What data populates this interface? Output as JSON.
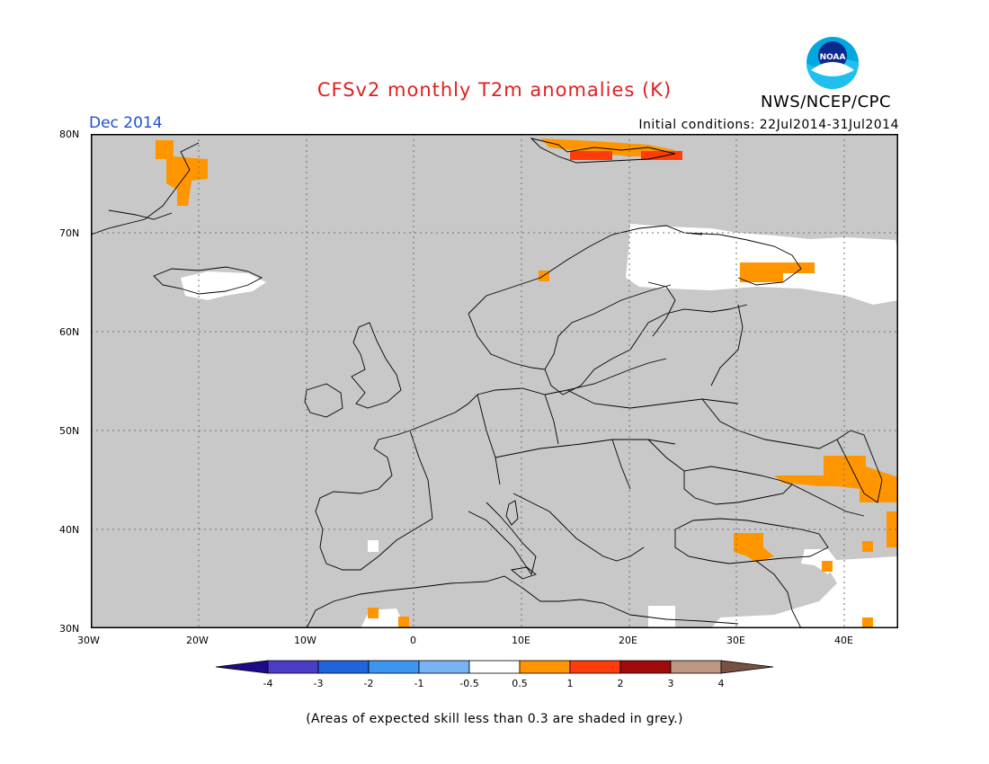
{
  "header": {
    "title": "CFSv2 monthly T2m anomalies (K)",
    "month": "Dec 2014",
    "initial_conditions": "Initial conditions: 22Jul2014-31Jul2014",
    "org": "NWS/NCEP/CPC",
    "logo_text": "NOAA"
  },
  "map": {
    "lat_labels": [
      "80N",
      "70N",
      "60N",
      "50N",
      "40N",
      "30N"
    ],
    "lon_labels": [
      "30W",
      "20W",
      "10W",
      "0",
      "10E",
      "20E",
      "30E",
      "40E"
    ],
    "background": "#c8c8c8"
  },
  "colorbar": {
    "tick_labels": [
      "-4",
      "-3",
      "-2",
      "-1",
      "-0.5",
      "0.5",
      "1",
      "2",
      "3",
      "4"
    ],
    "colors": [
      "#1e0a8c",
      "#4b3cc8",
      "#1e64dc",
      "#3c96f0",
      "#78b4f5",
      "#ffffff",
      "#ff9600",
      "#ff3c0a",
      "#a00a0a",
      "#be9684",
      "#785044"
    ]
  },
  "footnote": "(Areas of expected skill less than 0.3 are shaded in grey.)"
}
